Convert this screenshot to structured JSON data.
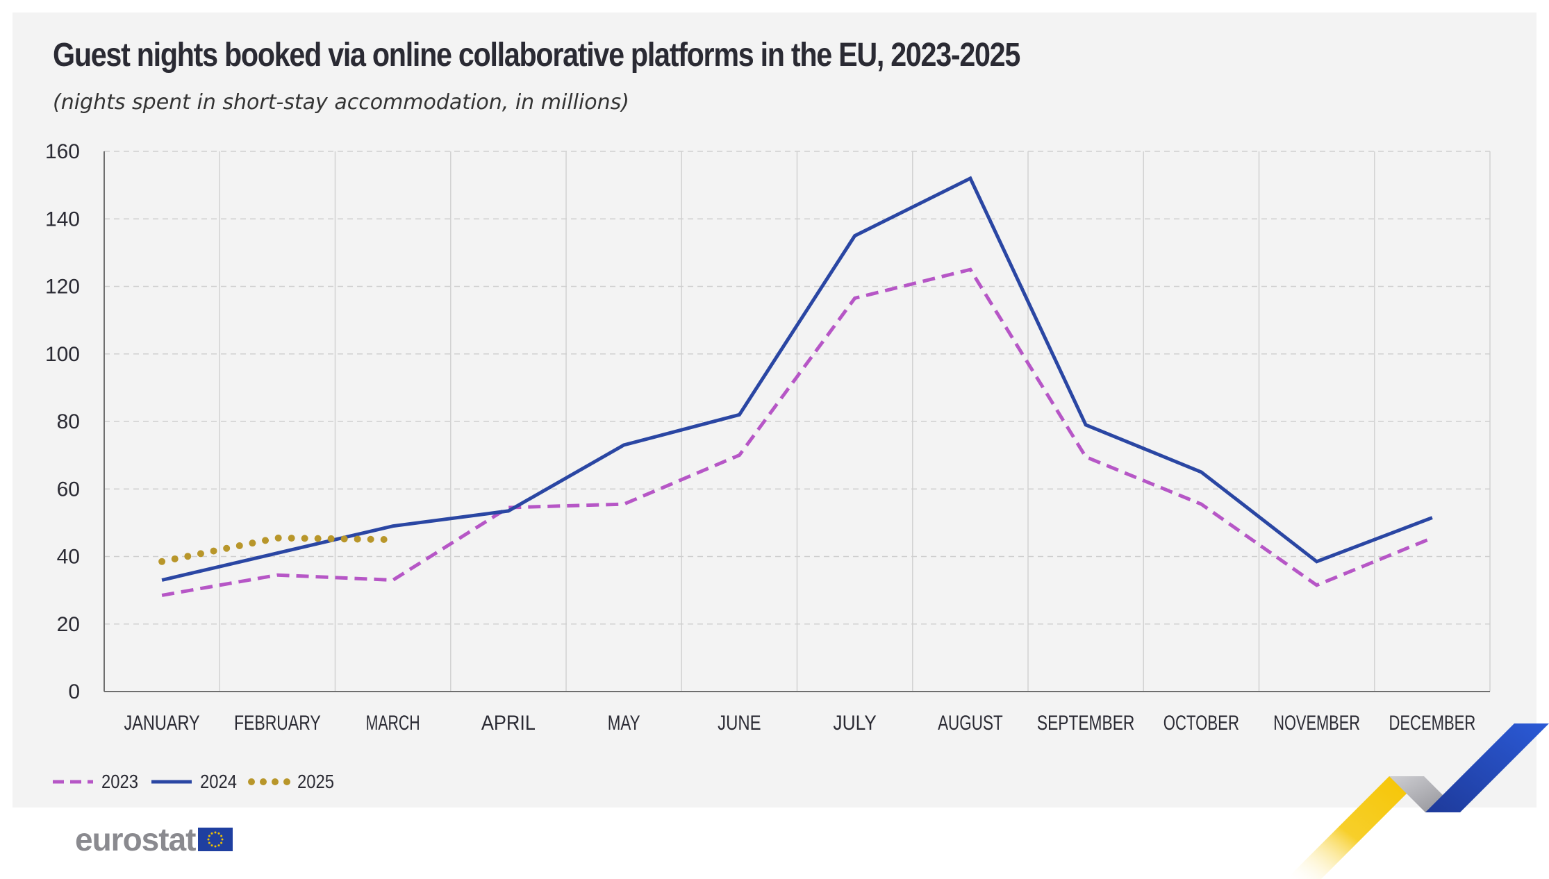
{
  "header": {
    "title": "Guest nights booked via online collaborative platforms in the EU, 2023-2025",
    "subtitle": "(nights spent in short-stay accommodation, in millions)"
  },
  "chart_data": {
    "type": "line",
    "title": "Guest nights booked via online collaborative platforms in the EU, 2023-2025",
    "subtitle": "(nights spent in short-stay accommodation, in millions)",
    "xlabel": "",
    "ylabel": "",
    "ylim": [
      0,
      160
    ],
    "yticks": [
      0,
      20,
      40,
      60,
      80,
      100,
      120,
      140,
      160
    ],
    "grid": true,
    "legend_position": "bottom-left",
    "categories": [
      "JANUARY",
      "FEBRUARY",
      "MARCH",
      "APRIL",
      "MAY",
      "JUNE",
      "JULY",
      "AUGUST",
      "SEPTEMBER",
      "OCTOBER",
      "NOVEMBER",
      "DECEMBER"
    ],
    "series": [
      {
        "name": "2023",
        "style": "dashed",
        "color": "#b656c6",
        "values": [
          28.5,
          34.5,
          33,
          54.5,
          55.5,
          70,
          116.5,
          125,
          69.5,
          55.5,
          31.5,
          45.5
        ]
      },
      {
        "name": "2024",
        "style": "solid",
        "color": "#2a46a3",
        "values": [
          33,
          41,
          49,
          53.5,
          73,
          82,
          135,
          152,
          79,
          65,
          38.5,
          51.5
        ]
      },
      {
        "name": "2025",
        "style": "dotted",
        "color": "#b8962a",
        "values": [
          38.5,
          45.5,
          45,
          null,
          null,
          null,
          null,
          null,
          null,
          null,
          null,
          null
        ]
      }
    ]
  },
  "legend": {
    "items": [
      {
        "label": "2023",
        "color": "#b656c6",
        "style": "dashed"
      },
      {
        "label": "2024",
        "color": "#2a46a3",
        "style": "solid"
      },
      {
        "label": "2025",
        "color": "#b8962a",
        "style": "dotted"
      }
    ]
  },
  "footer": {
    "brand": "eurostat",
    "flag_icon": "eu-flag-icon",
    "decoration_icon": "eurostat-ribbon-icon"
  }
}
